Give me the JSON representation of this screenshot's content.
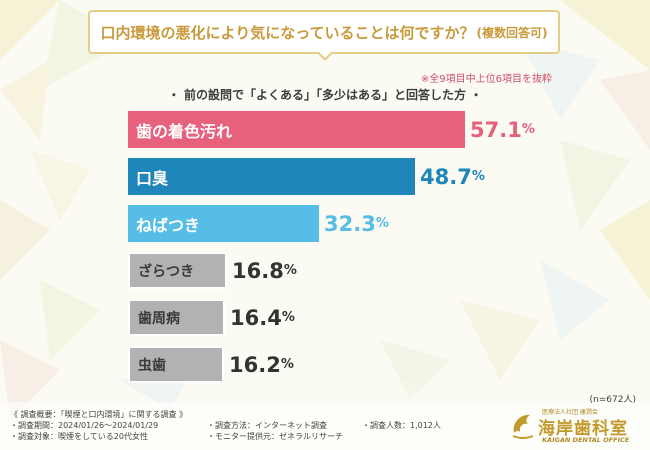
{
  "title": {
    "main": "口内環境の悪化により気になっていることは何ですか？",
    "sub": "(複数回答可)"
  },
  "note": "※全9項目中上位6項目を抜粋",
  "subtitle": "・ 前の設問で「よくある」「多少はある」と回答した方 ・",
  "colors": {
    "accent_gold": "#c99a3c",
    "bar_1": "#e7617d",
    "bar_2": "#1e86b8",
    "bar_3": "#55bde6",
    "bar_low": "#b2b2b2",
    "value_low": "#333333"
  },
  "chart_data": {
    "type": "bar",
    "orientation": "horizontal",
    "categories": [
      "歯の着色汚れ",
      "口臭",
      "ねばつき",
      "ざらつき",
      "歯周病",
      "虫歯"
    ],
    "values": [
      57.1,
      48.7,
      32.3,
      16.8,
      16.4,
      16.2
    ],
    "unit": "%",
    "value_labels": [
      {
        "big": "57.1",
        "small": "%"
      },
      {
        "big": "48.7",
        "small": "%"
      },
      {
        "big": "32.3",
        "small": "%"
      },
      {
        "big": "16.8",
        "small": "%"
      },
      {
        "big": "16.4",
        "small": "%"
      },
      {
        "big": "16.2",
        "small": "%"
      }
    ],
    "xlim": [
      0,
      60
    ],
    "n_label": "(n=672人)"
  },
  "footer": {
    "overview": "《 調査概要：「喫煙と口内環境」に関する調査 》",
    "period": "・調査期間：2024/01/26～2024/01/29",
    "method": "・調査方法：インターネット調査",
    "count": "・調査人数：1,012人",
    "target": "・調査対象：喫煙をしている20代女性",
    "provider": "・モニター提供元：ゼネラルリサーチ"
  },
  "logo": {
    "top": "医療法人社団 康潤会",
    "main": "海岸歯科室",
    "en": "KAIGAN DENTAL OFFICE"
  }
}
